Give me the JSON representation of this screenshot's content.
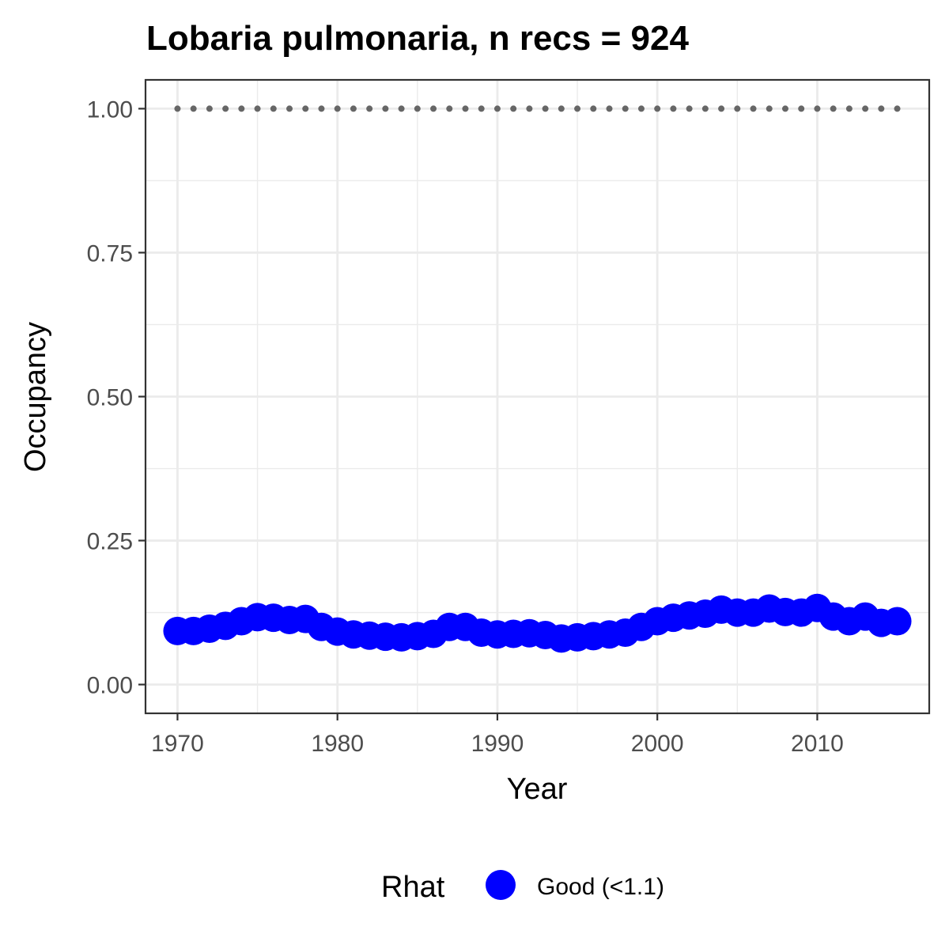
{
  "chart_data": {
    "type": "scatter",
    "title": "Lobaria pulmonaria, n recs = 924",
    "xlabel": "Year",
    "ylabel": "Occupancy",
    "xlim": [
      1968,
      2017
    ],
    "ylim": [
      -0.05,
      1.05
    ],
    "x_ticks": [
      1970,
      1980,
      1990,
      2000,
      2010
    ],
    "x_tick_labels": [
      "1970",
      "1980",
      "1990",
      "2000",
      "2010"
    ],
    "y_ticks": [
      0,
      0.25,
      0.5,
      0.75,
      1.0
    ],
    "y_tick_labels": [
      "0.00",
      "0.25",
      "0.50",
      "0.75",
      "1.00"
    ],
    "grid": true,
    "legend": {
      "title": "Rhat",
      "position": "bottom",
      "entries": [
        {
          "label": "Good (<1.1)",
          "color": "#0000ff"
        }
      ]
    },
    "series": [
      {
        "name": "Good (<1.1)",
        "color": "#0000ff",
        "x": [
          1970,
          1971,
          1972,
          1973,
          1974,
          1975,
          1976,
          1977,
          1978,
          1979,
          1980,
          1981,
          1982,
          1983,
          1984,
          1985,
          1986,
          1987,
          1988,
          1989,
          1990,
          1991,
          1992,
          1993,
          1994,
          1995,
          1996,
          1997,
          1998,
          1999,
          2000,
          2001,
          2002,
          2003,
          2004,
          2005,
          2006,
          2007,
          2008,
          2009,
          2010,
          2011,
          2012,
          2013,
          2014,
          2015
        ],
        "y": [
          0.093,
          0.093,
          0.097,
          0.102,
          0.11,
          0.117,
          0.116,
          0.112,
          0.114,
          0.1,
          0.092,
          0.087,
          0.085,
          0.083,
          0.082,
          0.084,
          0.088,
          0.1,
          0.1,
          0.09,
          0.087,
          0.088,
          0.089,
          0.086,
          0.08,
          0.082,
          0.084,
          0.087,
          0.09,
          0.1,
          0.11,
          0.116,
          0.12,
          0.123,
          0.13,
          0.125,
          0.125,
          0.132,
          0.126,
          0.125,
          0.133,
          0.118,
          0.11,
          0.118,
          0.107,
          0.11
        ]
      }
    ],
    "reference_line": {
      "y": 1.0,
      "style": "dotted",
      "color": "#666666",
      "x_range": [
        1970,
        2015
      ]
    },
    "point_color": "#0000ff",
    "ribbon_color": "#bfbfbf"
  }
}
